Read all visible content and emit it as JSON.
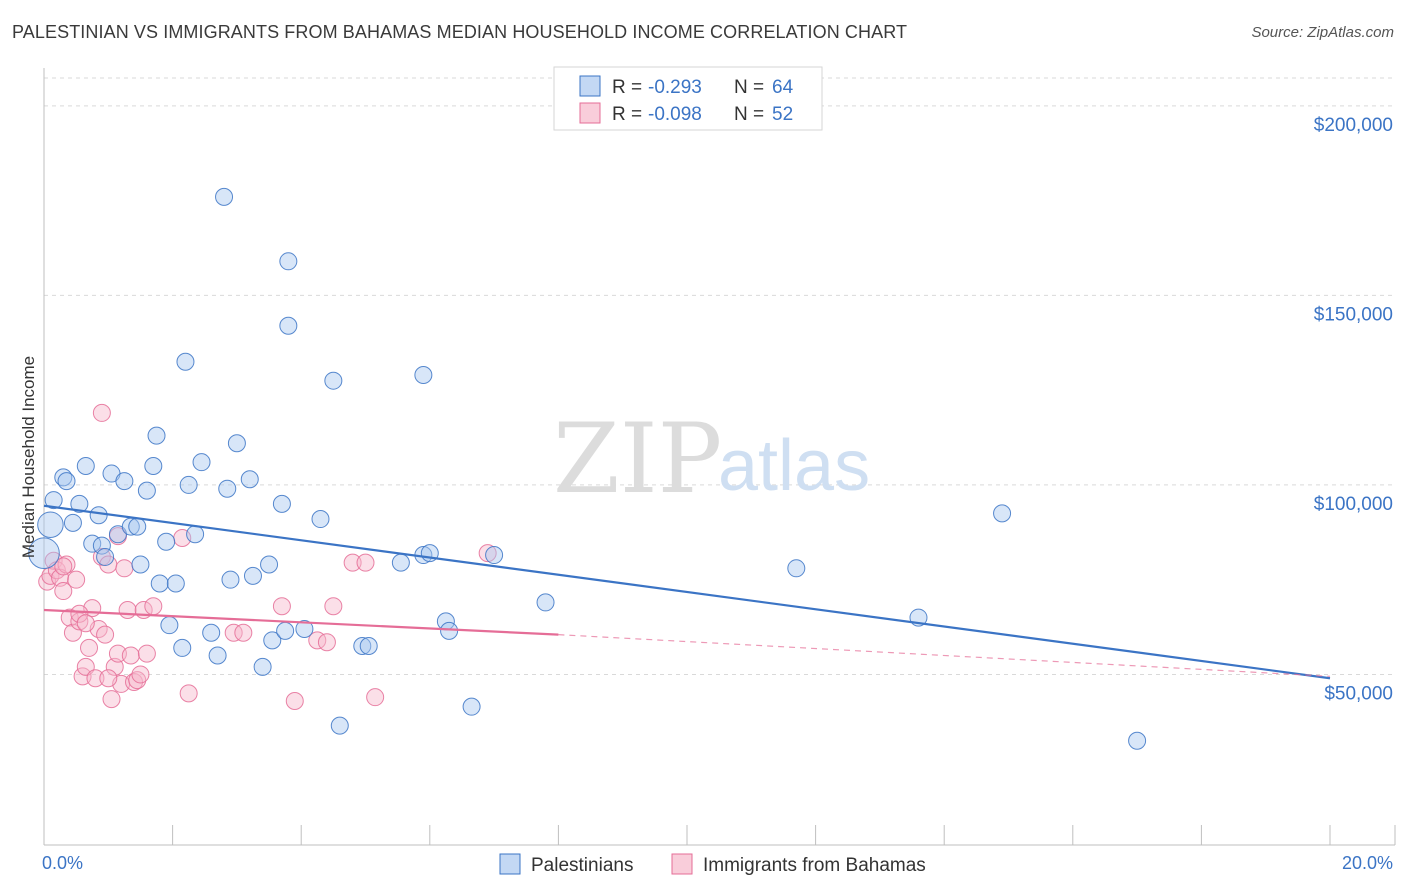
{
  "title": "PALESTINIAN VS IMMIGRANTS FROM BAHAMAS MEDIAN HOUSEHOLD INCOME CORRELATION CHART",
  "source": "Source: ZipAtlas.com",
  "watermark": {
    "zip": "ZIP",
    "atlas": "atlas"
  },
  "colors": {
    "blue": "#3b74c5",
    "blue_fill": "#a9c8ef",
    "pink": "#e56d97",
    "pink_fill": "#f6b8cb",
    "grid": "#d9d9d9"
  },
  "legend": {
    "rows": [
      {
        "r_label": "R = ",
        "r_value": "-0.293",
        "n_label": "N = ",
        "n_value": "64",
        "series": "blue"
      },
      {
        "r_label": "R = ",
        "r_value": "-0.098",
        "n_label": "N = ",
        "n_value": "52",
        "series": "pink"
      }
    ]
  },
  "chart_data": {
    "type": "scatter",
    "title": "PALESTINIAN VS IMMIGRANTS FROM BAHAMAS MEDIAN HOUSEHOLD INCOME CORRELATION CHART",
    "xlabel": "",
    "ylabel": "Median Household Income",
    "xlim": [
      0,
      20
    ],
    "ylim": [
      5000,
      210000
    ],
    "x_tick_labels": [
      "0.0%",
      "20.0%"
    ],
    "y_ticks": [
      50000,
      100000,
      150000,
      200000
    ],
    "y_tick_labels": [
      "$50,000",
      "$100,000",
      "$150,000",
      "$200,000"
    ],
    "grid": true,
    "legend_position": "bottom-center",
    "series": [
      {
        "name": "Palestinians",
        "color": "#3b74c5",
        "trend": {
          "x0": 0.0,
          "y0": 94500,
          "x1": 20.0,
          "y1": 49000
        },
        "points": [
          [
            0.0,
            82000,
            1.8
          ],
          [
            0.1,
            89500,
            1.5
          ],
          [
            0.15,
            96000,
            1.0
          ],
          [
            0.3,
            102000,
            1.0
          ],
          [
            0.35,
            101000,
            1.0
          ],
          [
            0.45,
            90000,
            1.0
          ],
          [
            0.55,
            95000,
            1.0
          ],
          [
            0.65,
            105000,
            1.0
          ],
          [
            0.75,
            84500,
            1.0
          ],
          [
            0.85,
            92000,
            1.0
          ],
          [
            0.9,
            84000,
            1.0
          ],
          [
            0.95,
            81000,
            1.0
          ],
          [
            1.05,
            103000,
            1.0
          ],
          [
            1.15,
            87000,
            1.0
          ],
          [
            1.25,
            101000,
            1.0
          ],
          [
            1.35,
            89000,
            1.0
          ],
          [
            1.45,
            89000,
            1.0
          ],
          [
            1.5,
            79000,
            1.0
          ],
          [
            1.6,
            98500,
            1.0
          ],
          [
            1.7,
            105000,
            1.0
          ],
          [
            1.75,
            113000,
            1.0
          ],
          [
            1.8,
            74000,
            1.0
          ],
          [
            1.9,
            85000,
            1.0
          ],
          [
            1.95,
            63000,
            1.0
          ],
          [
            2.05,
            74000,
            1.0
          ],
          [
            2.15,
            57000,
            1.0
          ],
          [
            2.25,
            100000,
            1.0
          ],
          [
            2.35,
            87000,
            1.0
          ],
          [
            2.45,
            106000,
            1.0
          ],
          [
            2.6,
            61000,
            1.0
          ],
          [
            2.7,
            55000,
            1.0
          ],
          [
            2.85,
            99000,
            1.0
          ],
          [
            2.9,
            75000,
            1.0
          ],
          [
            3.0,
            111000,
            1.0
          ],
          [
            3.2,
            101500,
            1.0
          ],
          [
            3.25,
            76000,
            1.0
          ],
          [
            3.4,
            52000,
            1.0
          ],
          [
            3.5,
            79000,
            1.0
          ],
          [
            3.55,
            59000,
            1.0
          ],
          [
            3.7,
            95000,
            1.0
          ],
          [
            3.75,
            61500,
            1.0
          ],
          [
            4.05,
            62000,
            1.0
          ],
          [
            4.3,
            91000,
            1.0
          ],
          [
            4.6,
            36500,
            1.0
          ],
          [
            4.95,
            57500,
            1.0
          ],
          [
            5.05,
            57500,
            1.0
          ],
          [
            5.55,
            79500,
            1.0
          ],
          [
            5.9,
            81500,
            1.0
          ],
          [
            6.0,
            82000,
            1.0
          ],
          [
            6.25,
            64000,
            1.0
          ],
          [
            6.3,
            61500,
            1.0
          ],
          [
            6.65,
            41500,
            1.0
          ],
          [
            7.0,
            81500,
            1.0
          ],
          [
            7.8,
            69000,
            1.0
          ],
          [
            11.7,
            78000,
            1.0
          ],
          [
            13.6,
            65000,
            1.0
          ],
          [
            14.9,
            92500,
            1.0
          ],
          [
            17.0,
            32500,
            1.0
          ],
          [
            2.8,
            176000,
            1.0
          ],
          [
            3.8,
            159000,
            1.0
          ],
          [
            3.8,
            142000,
            1.0
          ],
          [
            2.2,
            132500,
            1.0
          ],
          [
            4.5,
            127500,
            1.0
          ],
          [
            5.9,
            129000,
            1.0
          ]
        ]
      },
      {
        "name": "Immigrants from Bahamas",
        "color": "#e56d97",
        "trend": {
          "x0": 0.0,
          "y0": 67000,
          "x1": 8.0,
          "y1": 60500,
          "dash_to": {
            "x": 20.0,
            "y": 49500
          }
        },
        "points": [
          [
            0.05,
            74500,
            1.0
          ],
          [
            0.1,
            76000,
            1.0
          ],
          [
            0.15,
            80000,
            1.0
          ],
          [
            0.2,
            77500,
            1.0
          ],
          [
            0.25,
            75500,
            1.0
          ],
          [
            0.3,
            72000,
            1.0
          ],
          [
            0.35,
            79000,
            1.0
          ],
          [
            0.4,
            65000,
            1.0
          ],
          [
            0.45,
            61000,
            1.0
          ],
          [
            0.5,
            75000,
            1.0
          ],
          [
            0.55,
            64000,
            1.0
          ],
          [
            0.6,
            49500,
            1.0
          ],
          [
            0.65,
            52000,
            1.0
          ],
          [
            0.7,
            57000,
            1.0
          ],
          [
            0.75,
            67500,
            1.0
          ],
          [
            0.8,
            49000,
            1.0
          ],
          [
            0.85,
            62000,
            1.0
          ],
          [
            0.9,
            81000,
            1.0
          ],
          [
            0.95,
            60500,
            1.0
          ],
          [
            1.0,
            79000,
            1.0
          ],
          [
            1.05,
            43500,
            1.0
          ],
          [
            1.1,
            52000,
            1.0
          ],
          [
            1.15,
            55500,
            1.0
          ],
          [
            1.2,
            47500,
            1.0
          ],
          [
            1.25,
            78000,
            1.0
          ],
          [
            1.3,
            67000,
            1.0
          ],
          [
            1.35,
            55000,
            1.0
          ],
          [
            1.4,
            48000,
            1.0
          ],
          [
            1.45,
            48500,
            1.0
          ],
          [
            1.5,
            50000,
            1.0
          ],
          [
            1.55,
            67000,
            1.0
          ],
          [
            1.6,
            55500,
            1.0
          ],
          [
            1.7,
            68000,
            1.0
          ],
          [
            1.15,
            86500,
            1.0
          ],
          [
            0.9,
            119000,
            1.0
          ],
          [
            2.15,
            86000,
            1.0
          ],
          [
            2.25,
            45000,
            1.0
          ],
          [
            2.95,
            61000,
            1.0
          ],
          [
            3.1,
            61000,
            1.0
          ],
          [
            3.7,
            68000,
            1.0
          ],
          [
            3.9,
            43000,
            1.0
          ],
          [
            4.25,
            59000,
            1.0
          ],
          [
            4.4,
            58500,
            1.0
          ],
          [
            4.5,
            68000,
            1.0
          ],
          [
            4.8,
            79500,
            1.0
          ],
          [
            5.0,
            79500,
            1.0
          ],
          [
            5.15,
            44000,
            1.0
          ],
          [
            6.9,
            82000,
            1.0
          ],
          [
            0.3,
            78500,
            1.0
          ],
          [
            0.55,
            66000,
            1.0
          ],
          [
            0.65,
            63500,
            1.0
          ],
          [
            1.0,
            49000,
            1.0
          ]
        ]
      }
    ]
  },
  "bottom_legend": [
    {
      "label": "Palestinians",
      "series": "blue"
    },
    {
      "label": "Immigrants from Bahamas",
      "series": "pink"
    }
  ]
}
